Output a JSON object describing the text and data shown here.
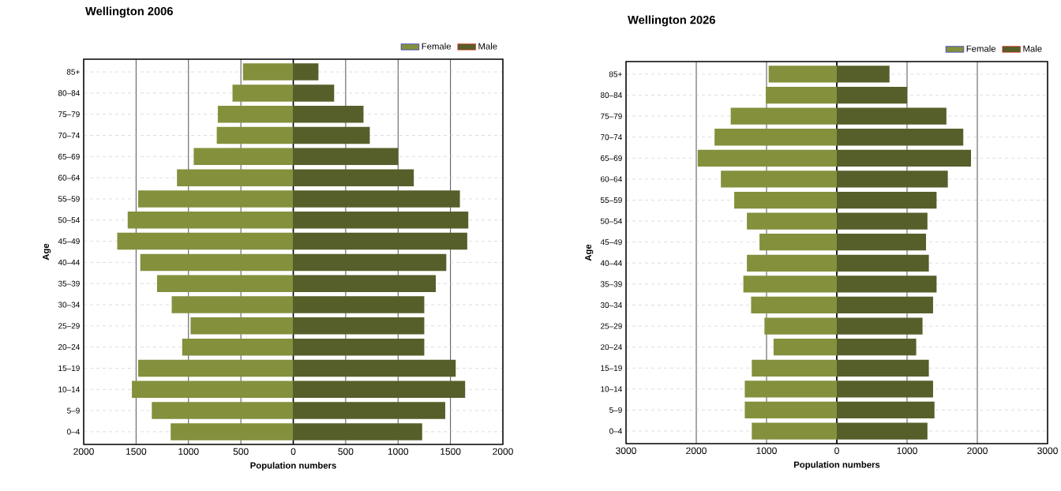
{
  "chart_data": [
    {
      "type": "bar",
      "orientation": "horizontal",
      "stacked": true,
      "title": "Wellington 2006",
      "xlabel": "Population numbers",
      "ylabel": "Age",
      "categories": [
        "85+",
        "80–84",
        "75–79",
        "70–74",
        "65–69",
        "60–64",
        "55–59",
        "50–54",
        "45–49",
        "40–44",
        "35–39",
        "30–34",
        "25–29",
        "20–24",
        "15–19",
        "10–14",
        "5–9",
        "0–4"
      ],
      "series": [
        {
          "name": "Female",
          "color": "#84903c",
          "values": [
            -480,
            -580,
            -720,
            -730,
            -950,
            -1110,
            -1480,
            -1580,
            -1680,
            -1460,
            -1300,
            -1160,
            -980,
            -1060,
            -1480,
            -1540,
            -1350,
            -1170
          ]
        },
        {
          "name": "Male",
          "color": "#565f2a",
          "values": [
            240,
            390,
            670,
            730,
            1000,
            1150,
            1590,
            1670,
            1660,
            1460,
            1360,
            1250,
            1250,
            1250,
            1550,
            1640,
            1450,
            1230
          ]
        }
      ],
      "xlim": [
        -2000,
        2000
      ],
      "xticks": [
        {
          "value": -2000,
          "label": "2000"
        },
        {
          "value": -1500,
          "label": "1500"
        },
        {
          "value": -1000,
          "label": "1000"
        },
        {
          "value": -500,
          "label": "500"
        },
        0,
        500,
        1000,
        1500,
        2000
      ],
      "ref_lines": [
        {
          "axis": "x",
          "value": 0,
          "color": "#000000"
        }
      ],
      "grid": true,
      "legend": "top right"
    },
    {
      "type": "bar",
      "orientation": "horizontal",
      "stacked": true,
      "title": "Wellington 2026",
      "xlabel": "Population numbers",
      "ylabel": "Age",
      "categories": [
        "85+",
        "80–84",
        "75–79",
        "70–74",
        "65–69",
        "60–64",
        "55–59",
        "50–54",
        "45–49",
        "40–44",
        "35–39",
        "30–34",
        "25–29",
        "20–24",
        "15–19",
        "10–14",
        "5–9",
        "0–4"
      ],
      "series": [
        {
          "name": "Female",
          "color": "#84903c",
          "values": [
            -970,
            -1010,
            -1510,
            -1740,
            -1980,
            -1650,
            -1460,
            -1280,
            -1100,
            -1280,
            -1330,
            -1220,
            -1030,
            -900,
            -1210,
            -1310,
            -1310,
            -1210
          ]
        },
        {
          "name": "Male",
          "color": "#565f2a",
          "values": [
            750,
            1000,
            1560,
            1800,
            1910,
            1580,
            1420,
            1290,
            1270,
            1310,
            1420,
            1370,
            1220,
            1130,
            1310,
            1370,
            1390,
            1290
          ]
        }
      ],
      "xlim": [
        -3000,
        3000
      ],
      "xticks": [
        {
          "value": -3000,
          "label": "3000"
        },
        {
          "value": -2000,
          "label": "2000"
        },
        {
          "value": -1000,
          "label": "1000"
        },
        0,
        1000,
        2000,
        3000
      ],
      "ref_lines": [
        {
          "axis": "x",
          "value": 0,
          "color": "#000000"
        }
      ],
      "grid": true,
      "legend": "top right"
    }
  ]
}
